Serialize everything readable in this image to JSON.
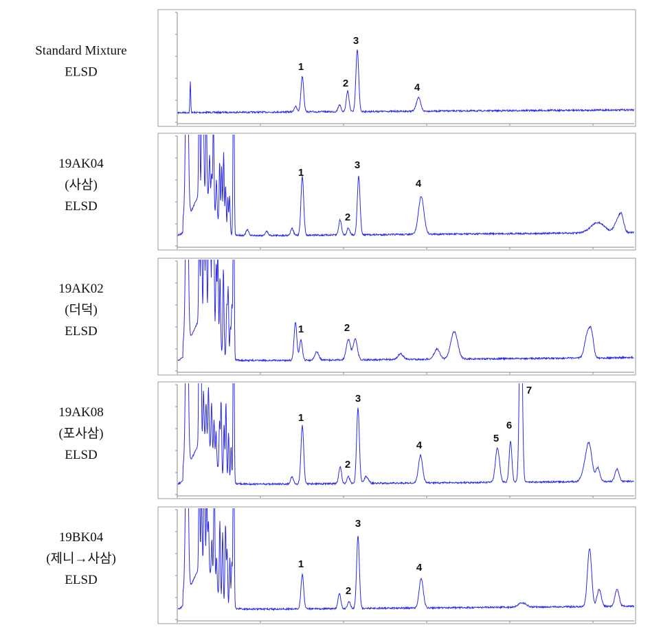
{
  "panels": [
    {
      "label_lines": [
        "Standard Mixture",
        "ELSD"
      ],
      "peak_labels": [
        "1",
        "2",
        "3",
        "4"
      ]
    },
    {
      "label_lines": [
        "19AK04",
        "(사삼)",
        "ELSD"
      ],
      "peak_labels": [
        "1",
        "2",
        "3",
        "4"
      ]
    },
    {
      "label_lines": [
        "19AK02",
        "(더덕)",
        "ELSD"
      ],
      "peak_labels": [
        "1",
        "2"
      ]
    },
    {
      "label_lines": [
        "19AK08",
        "(포사삼)",
        "ELSD"
      ],
      "peak_labels": [
        "1",
        "2",
        "3",
        "4",
        "5",
        "6",
        "7"
      ]
    },
    {
      "label_lines": [
        "19BK04",
        "(제니→사삼)",
        "ELSD"
      ],
      "peak_labels": [
        "1",
        "2",
        "3",
        "4"
      ]
    }
  ]
}
